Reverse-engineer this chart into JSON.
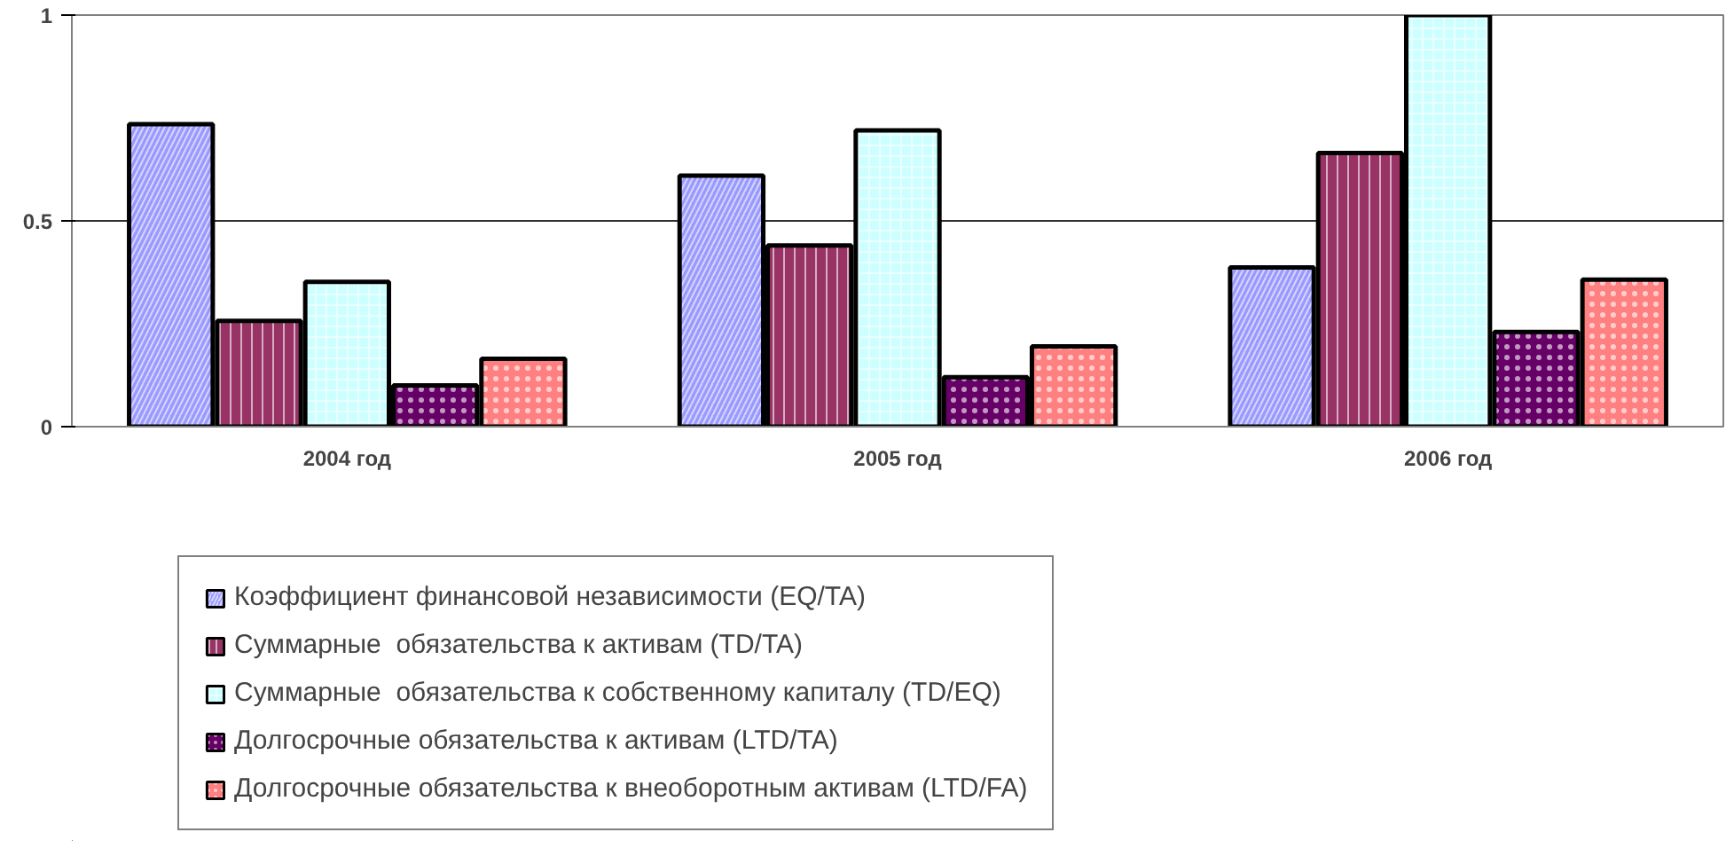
{
  "chart_data": {
    "type": "bar",
    "categories": [
      "2004 год",
      "2005 год",
      "2006 год"
    ],
    "series": [
      {
        "name": "Коэффициент финансовой независимости (EQ/TA)",
        "color": "#9999ff",
        "values": [
          0.735,
          0.61,
          0.387
        ]
      },
      {
        "name": "Суммарные  обязательства к активам (TD/TA)",
        "color": "#993366",
        "values": [
          0.257,
          0.44,
          0.665
        ]
      },
      {
        "name": "Суммарные  обязательства к собственному капиталу (TD/EQ)",
        "color": "#ccffff",
        "values": [
          0.352,
          0.72,
          1.0
        ]
      },
      {
        "name": "Долгосрочные обязательства к активам (LTD/TA)",
        "color": "#660066",
        "values": [
          0.1,
          0.12,
          0.23
        ]
      },
      {
        "name": "Долгосрочные обязательства к внеоборотным активам (LTD/FA)",
        "color": "#ff8080",
        "values": [
          0.165,
          0.195,
          0.357
        ]
      }
    ],
    "ylim": [
      0,
      1
    ],
    "yticks": [
      0,
      0.5,
      1
    ],
    "grid": "y",
    "legend": "bottom"
  }
}
